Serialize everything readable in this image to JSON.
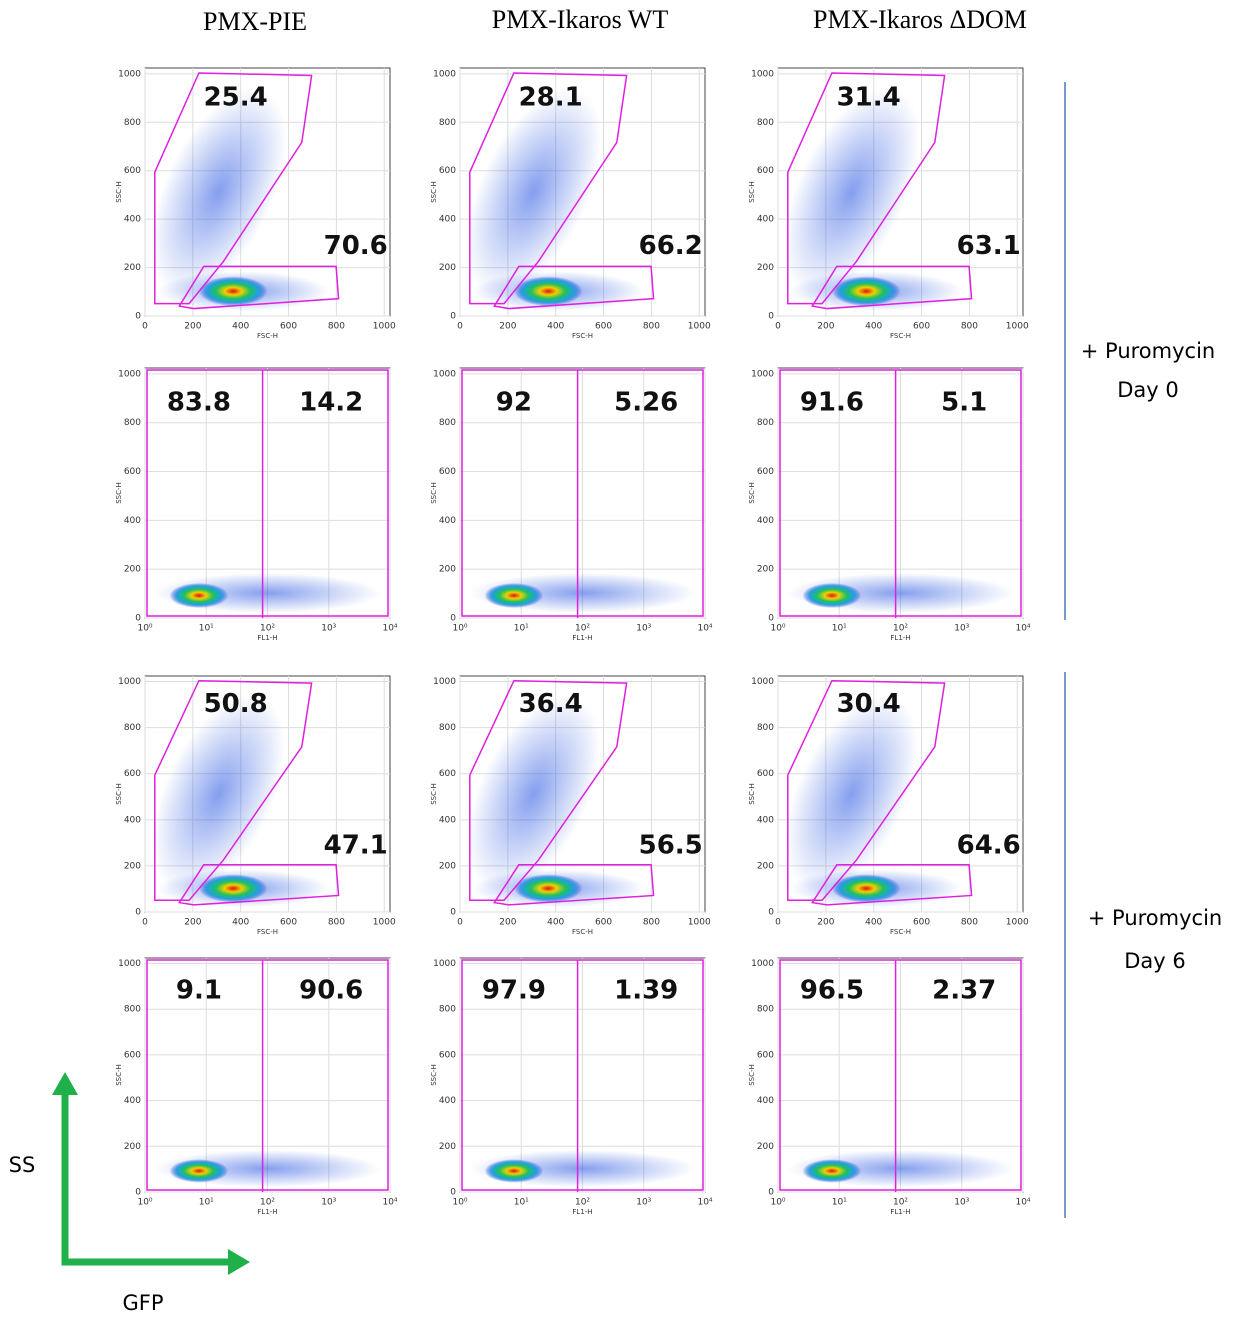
{
  "columns": [
    "PMX-PIE",
    "PMX-Ikaros WT",
    "PMX-Ikaros ΔDOM"
  ],
  "row_labels": [
    {
      "line1": "+ Puromycin",
      "line2": "Day 0"
    },
    {
      "line1": "+ Puromycin",
      "line2": "Day 6"
    }
  ],
  "axis_legend": {
    "y": "SS",
    "x": "GFP"
  },
  "chart_data": [
    {
      "type": "scatter",
      "xlabel": "FSC-H",
      "ylabel": "SSC-H",
      "xlim": [
        0,
        1024
      ],
      "ylim": [
        0,
        1024
      ],
      "xticks": [
        0,
        200,
        400,
        600,
        800,
        1000
      ],
      "yticks": [
        0,
        200,
        400,
        600,
        800,
        1000
      ],
      "gates": [
        25.4,
        70.6
      ]
    },
    {
      "type": "scatter",
      "xlabel": "FSC-H",
      "ylabel": "SSC-H",
      "xlim": [
        0,
        1024
      ],
      "ylim": [
        0,
        1024
      ],
      "xticks": [
        0,
        200,
        400,
        600,
        800,
        1000
      ],
      "yticks": [
        0,
        200,
        400,
        600,
        800,
        1000
      ],
      "gates": [
        28.1,
        66.2
      ]
    },
    {
      "type": "scatter",
      "xlabel": "FSC-H",
      "ylabel": "SSC-H",
      "xlim": [
        0,
        1024
      ],
      "ylim": [
        0,
        1024
      ],
      "xticks": [
        0,
        200,
        400,
        600,
        800,
        1000
      ],
      "yticks": [
        0,
        200,
        400,
        600,
        800,
        1000
      ],
      "gates": [
        31.4,
        63.1
      ]
    },
    {
      "type": "scatter",
      "log_x": true,
      "xlabel": "FL1-H",
      "ylabel": "SSC-H",
      "xlim": [
        1,
        10000
      ],
      "ylim": [
        0,
        1024
      ],
      "xticks": [
        {
          "value": 1,
          "label": "10⁰"
        },
        {
          "value": 10,
          "label": "10¹"
        },
        {
          "value": 100,
          "label": "10²"
        },
        {
          "value": 1000,
          "label": "10³"
        },
        {
          "value": 10000,
          "label": "10⁴"
        }
      ],
      "yticks": [
        0,
        200,
        400,
        600,
        800,
        1000
      ],
      "gates": [
        83.8,
        14.2
      ]
    },
    {
      "type": "scatter",
      "log_x": true,
      "xlabel": "FL1-H",
      "ylabel": "SSC-H",
      "xlim": [
        1,
        10000
      ],
      "ylim": [
        0,
        1024
      ],
      "xticks": [
        {
          "value": 1,
          "label": "10⁰"
        },
        {
          "value": 10,
          "label": "10¹"
        },
        {
          "value": 100,
          "label": "10²"
        },
        {
          "value": 1000,
          "label": "10³"
        },
        {
          "value": 10000,
          "label": "10⁴"
        }
      ],
      "yticks": [
        0,
        200,
        400,
        600,
        800,
        1000
      ],
      "gates": [
        92,
        5.26
      ]
    },
    {
      "type": "scatter",
      "log_x": true,
      "xlabel": "FL1-H",
      "ylabel": "SSC-H",
      "xlim": [
        1,
        10000
      ],
      "ylim": [
        0,
        1024
      ],
      "xticks": [
        {
          "value": 1,
          "label": "10⁰"
        },
        {
          "value": 10,
          "label": "10¹"
        },
        {
          "value": 100,
          "label": "10²"
        },
        {
          "value": 1000,
          "label": "10³"
        },
        {
          "value": 10000,
          "label": "10⁴"
        }
      ],
      "yticks": [
        0,
        200,
        400,
        600,
        800,
        1000
      ],
      "gates": [
        91.6,
        5.1
      ]
    },
    {
      "type": "scatter",
      "xlabel": "FSC-H",
      "ylabel": "SSC-H",
      "xlim": [
        0,
        1024
      ],
      "ylim": [
        0,
        1024
      ],
      "xticks": [
        0,
        200,
        400,
        600,
        800,
        1000
      ],
      "yticks": [
        0,
        200,
        400,
        600,
        800,
        1000
      ],
      "gates": [
        50.8,
        47.1
      ]
    },
    {
      "type": "scatter",
      "xlabel": "FSC-H",
      "ylabel": "SSC-H",
      "xlim": [
        0,
        1024
      ],
      "ylim": [
        0,
        1024
      ],
      "xticks": [
        0,
        200,
        400,
        600,
        800,
        1000
      ],
      "yticks": [
        0,
        200,
        400,
        600,
        800,
        1000
      ],
      "gates": [
        36.4,
        56.5
      ]
    },
    {
      "type": "scatter",
      "xlabel": "FSC-H",
      "ylabel": "SSC-H",
      "xlim": [
        0,
        1024
      ],
      "ylim": [
        0,
        1024
      ],
      "xticks": [
        0,
        200,
        400,
        600,
        800,
        1000
      ],
      "yticks": [
        0,
        200,
        400,
        600,
        800,
        1000
      ],
      "gates": [
        30.4,
        64.6
      ]
    },
    {
      "type": "scatter",
      "log_x": true,
      "xlabel": "FL1-H",
      "ylabel": "SSC-H",
      "xlim": [
        1,
        10000
      ],
      "ylim": [
        0,
        1024
      ],
      "xticks": [
        {
          "value": 1,
          "label": "10⁰"
        },
        {
          "value": 10,
          "label": "10¹"
        },
        {
          "value": 100,
          "label": "10²"
        },
        {
          "value": 1000,
          "label": "10³"
        },
        {
          "value": 10000,
          "label": "10⁴"
        }
      ],
      "yticks": [
        0,
        200,
        400,
        600,
        800,
        1000
      ],
      "gates": [
        9.1,
        90.6
      ]
    },
    {
      "type": "scatter",
      "log_x": true,
      "xlabel": "FL1-H",
      "ylabel": "SSC-H",
      "xlim": [
        1,
        10000
      ],
      "ylim": [
        0,
        1024
      ],
      "xticks": [
        {
          "value": 1,
          "label": "10⁰"
        },
        {
          "value": 10,
          "label": "10¹"
        },
        {
          "value": 100,
          "label": "10²"
        },
        {
          "value": 1000,
          "label": "10³"
        },
        {
          "value": 10000,
          "label": "10⁴"
        }
      ],
      "yticks": [
        0,
        200,
        400,
        600,
        800,
        1000
      ],
      "gates": [
        97.9,
        1.39
      ]
    },
    {
      "type": "scatter",
      "log_x": true,
      "xlabel": "FL1-H",
      "ylabel": "SSC-H",
      "xlim": [
        1,
        10000
      ],
      "ylim": [
        0,
        1024
      ],
      "xticks": [
        {
          "value": 1,
          "label": "10⁰"
        },
        {
          "value": 10,
          "label": "10¹"
        },
        {
          "value": 100,
          "label": "10²"
        },
        {
          "value": 1000,
          "label": "10³"
        },
        {
          "value": 10000,
          "label": "10⁴"
        }
      ],
      "yticks": [
        0,
        200,
        400,
        600,
        800,
        1000
      ],
      "gates": [
        96.5,
        2.37
      ]
    }
  ]
}
